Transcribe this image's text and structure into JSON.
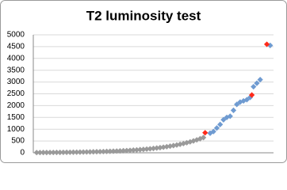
{
  "chart_data": {
    "type": "scatter",
    "title": "T2 luminosity test",
    "series": [
      {
        "color": "#9a9a9a",
        "x": [
          0,
          1,
          2,
          3,
          4,
          5,
          6,
          7,
          8,
          9,
          10,
          11,
          12,
          13,
          14,
          15,
          16,
          17,
          18,
          19,
          20,
          21,
          22,
          23,
          24,
          25,
          26,
          27,
          28,
          29,
          30,
          31,
          32,
          33,
          34,
          35,
          36,
          37,
          38,
          39,
          40,
          41,
          42,
          43,
          44,
          45,
          46,
          47,
          48,
          49,
          50
        ],
        "values": [
          10,
          11,
          12,
          13,
          14,
          15,
          16,
          18,
          19,
          21,
          23,
          25,
          27,
          30,
          32,
          35,
          38,
          41,
          45,
          49,
          53,
          58,
          63,
          68,
          74,
          80,
          87,
          95,
          103,
          112,
          122,
          133,
          144,
          157,
          170,
          185,
          201,
          218,
          237,
          258,
          281,
          305,
          332,
          361,
          392,
          426,
          463,
          504,
          548,
          595,
          647
        ]
      },
      {
        "color": "#6f9bd1",
        "x": [
          52,
          53,
          54,
          55,
          56,
          57,
          58,
          59,
          60,
          61,
          62,
          63,
          64,
          65,
          66,
          67,
          70
        ],
        "values": [
          830,
          900,
          1050,
          1200,
          1400,
          1500,
          1550,
          1800,
          2050,
          2150,
          2200,
          2250,
          2350,
          2800,
          2950,
          3100,
          4550
        ]
      },
      {
        "color": "#ff2a1a",
        "x": [
          50.5,
          64.5,
          69
        ],
        "values": [
          850,
          2450,
          4600
        ]
      }
    ],
    "xlim": [
      -1,
      71
    ],
    "ylim": [
      0,
      5000
    ],
    "yticks": [
      0,
      500,
      1000,
      1500,
      2000,
      2500,
      3000,
      3500,
      4000,
      4500,
      5000
    ],
    "grid": true
  }
}
